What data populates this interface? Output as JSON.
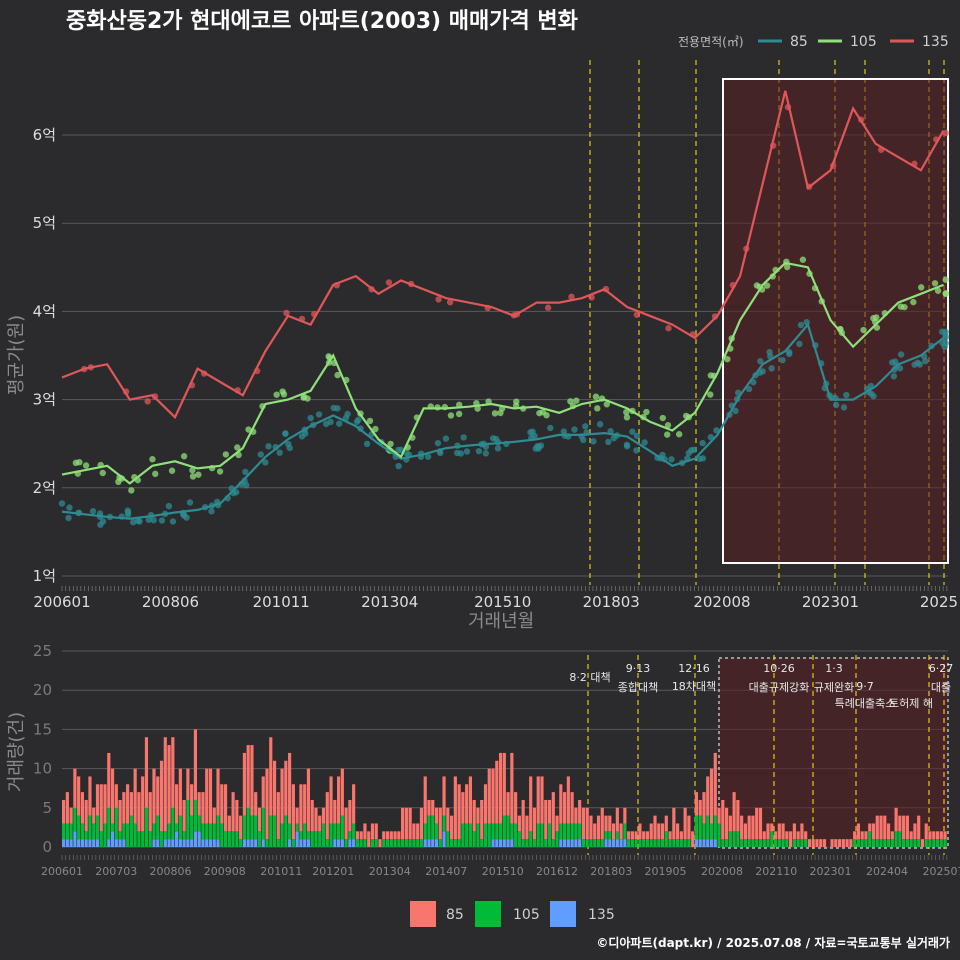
{
  "title": "중화산동2가 현대에코르 아파트(2003) 매매가격 변화",
  "footer": "©디아파트(dapt.kr) / 2025.07.08 / 자료=국토교통부 실거래가",
  "colors": {
    "s85": "#2e8b91",
    "s105": "#8fe07a",
    "s135": "#e0575a",
    "b85": "#f8766d",
    "b105": "#00ba38",
    "b135": "#619cff",
    "event": "#e6c619",
    "box": "#ffffff"
  },
  "chart_data": [
    {
      "type": "line",
      "title": "중화산동2가 현대에코르 아파트(2003) 매매가격 변화",
      "xlabel": "거래년월",
      "ylabel": "평균가(원)",
      "legend_title": "전용면적(㎡)",
      "legend_position": "top-right",
      "x_tick_labels": [
        "200601",
        "200806",
        "201011",
        "201304",
        "201510",
        "201803",
        "202008",
        "202301",
        "2025"
      ],
      "ytick_labels": [
        "1억",
        "2억",
        "3억",
        "4억",
        "5억",
        "6억"
      ],
      "ylim": [
        1,
        6.6
      ],
      "grid": true,
      "series": [
        {
          "name": "85",
          "x": [
            2006.0,
            2006.5,
            2007.0,
            2007.5,
            2008.0,
            2008.5,
            2009.0,
            2009.5,
            2010.0,
            2010.5,
            2011.0,
            2011.5,
            2012.0,
            2012.5,
            2013.0,
            2013.5,
            2014.0,
            2014.5,
            2015.0,
            2015.5,
            2016.0,
            2016.5,
            2017.0,
            2017.5,
            2018.0,
            2018.5,
            2019.0,
            2019.5,
            2020.0,
            2020.5,
            2021.0,
            2021.5,
            2022.0,
            2022.5,
            2023.0,
            2023.5,
            2024.0,
            2024.5,
            2025.0,
            2025.5
          ],
          "y": [
            1.73,
            1.7,
            1.67,
            1.65,
            1.68,
            1.72,
            1.75,
            1.82,
            2.08,
            2.35,
            2.55,
            2.7,
            2.82,
            2.7,
            2.5,
            2.33,
            2.38,
            2.45,
            2.48,
            2.5,
            2.52,
            2.55,
            2.6,
            2.6,
            2.62,
            2.58,
            2.42,
            2.25,
            2.33,
            2.6,
            3.05,
            3.4,
            3.55,
            3.85,
            3.0,
            3.0,
            3.15,
            3.4,
            3.5,
            3.7
          ]
        },
        {
          "name": "105",
          "x": [
            2006.0,
            2006.5,
            2007.0,
            2007.5,
            2008.0,
            2008.5,
            2009.0,
            2009.5,
            2010.0,
            2010.5,
            2011.0,
            2011.5,
            2012.0,
            2012.5,
            2013.0,
            2013.5,
            2014.0,
            2014.5,
            2015.0,
            2015.5,
            2016.0,
            2016.5,
            2017.0,
            2017.5,
            2018.0,
            2018.5,
            2019.0,
            2019.5,
            2020.0,
            2020.5,
            2021.0,
            2021.5,
            2022.0,
            2022.5,
            2023.0,
            2023.5,
            2024.0,
            2024.5,
            2025.0,
            2025.5
          ],
          "y": [
            2.15,
            2.2,
            2.25,
            2.05,
            2.25,
            2.3,
            2.22,
            2.25,
            2.45,
            2.95,
            3.0,
            3.1,
            3.5,
            2.9,
            2.55,
            2.35,
            2.9,
            2.9,
            2.92,
            2.95,
            2.9,
            2.92,
            2.85,
            2.95,
            3.0,
            2.9,
            2.75,
            2.65,
            2.85,
            3.3,
            3.9,
            4.3,
            4.55,
            4.5,
            3.9,
            3.6,
            3.85,
            4.1,
            4.2,
            4.3
          ]
        },
        {
          "name": "135",
          "x": [
            2006.0,
            2006.5,
            2007.0,
            2007.5,
            2008.0,
            2008.5,
            2009.0,
            2009.5,
            2010.0,
            2010.5,
            2011.0,
            2011.5,
            2012.0,
            2012.5,
            2013.0,
            2013.5,
            2014.0,
            2014.5,
            2015.0,
            2015.5,
            2016.0,
            2016.5,
            2017.0,
            2017.5,
            2018.0,
            2018.5,
            2019.0,
            2019.5,
            2020.0,
            2020.5,
            2021.0,
            2021.5,
            2022.0,
            2022.5,
            2023.0,
            2023.5,
            2024.0,
            2024.5,
            2025.0,
            2025.5
          ],
          "y": [
            3.25,
            3.35,
            3.4,
            3.0,
            3.05,
            2.8,
            3.35,
            3.2,
            3.05,
            3.55,
            3.95,
            3.85,
            4.3,
            4.4,
            4.2,
            4.35,
            4.25,
            4.15,
            4.1,
            4.05,
            3.95,
            4.1,
            4.1,
            4.15,
            4.25,
            4.05,
            3.95,
            3.85,
            3.7,
            3.95,
            4.4,
            5.45,
            6.5,
            5.4,
            5.6,
            6.3,
            5.9,
            5.75,
            5.6,
            6.05
          ]
        }
      ]
    },
    {
      "type": "bar",
      "ylabel": "거래량(건)",
      "x_tick_labels": [
        "200601",
        "200703",
        "200806",
        "200908",
        "201011",
        "201201",
        "201304",
        "201407",
        "201510",
        "201612",
        "201803",
        "201905",
        "202008",
        "202110",
        "202301",
        "202404",
        "202507"
      ],
      "ytick_labels": [
        "0",
        "5",
        "10",
        "15",
        "20",
        "25"
      ],
      "ylim": [
        0,
        25
      ],
      "stacked": true,
      "legend_position": "bottom",
      "series": [
        {
          "name": "85",
          "x": [
            2006.0,
            2006.5,
            2007.0,
            2007.5,
            2008.0,
            2008.5,
            2009.0,
            2009.5,
            2010.0,
            2010.5,
            2011.0,
            2011.5,
            2012.0,
            2012.5,
            2013.0,
            2013.5,
            2014.0,
            2014.5,
            2015.0,
            2015.5,
            2016.0,
            2016.5,
            2017.0,
            2017.5,
            2018.0,
            2018.5,
            2019.0,
            2019.5,
            2020.0,
            2020.5,
            2021.0,
            2021.5,
            2022.0,
            2022.5,
            2023.0,
            2023.5,
            2024.0,
            2024.5,
            2025.0,
            2025.5
          ],
          "y": [
            3,
            4,
            5,
            6,
            8,
            7,
            5,
            6,
            6,
            7,
            6,
            5,
            4,
            2,
            1,
            3,
            4,
            5,
            5,
            6,
            5,
            4,
            4,
            3,
            2,
            1,
            2,
            3,
            5,
            4,
            3,
            2,
            1,
            1,
            1,
            1,
            2,
            2,
            2,
            1
          ]
        },
        {
          "name": "105",
          "x": [
            2006.0,
            2006.5,
            2007.0,
            2007.5,
            2008.0,
            2008.5,
            2009.0,
            2009.5,
            2010.0,
            2010.5,
            2011.0,
            2011.5,
            2012.0,
            2012.5,
            2013.0,
            2013.5,
            2014.0,
            2014.5,
            2015.0,
            2015.5,
            2016.0,
            2016.5,
            2017.0,
            2017.5,
            2018.0,
            2018.5,
            2019.0,
            2019.5,
            2020.0,
            2020.5,
            2021.0,
            2021.5,
            2022.0,
            2022.5,
            2023.0,
            2023.5,
            2024.0,
            2024.5,
            2025.0,
            2025.5
          ],
          "y": [
            2,
            2,
            3,
            3,
            3,
            3,
            2,
            2,
            3,
            3,
            2,
            2,
            2,
            1,
            1,
            1,
            2,
            2,
            2,
            2,
            2,
            2,
            2,
            1,
            1,
            1,
            1,
            1,
            3,
            2,
            1,
            1,
            1,
            0,
            0,
            1,
            1,
            1,
            1,
            1
          ]
        },
        {
          "name": "135",
          "x": [
            2006.0,
            2006.5,
            2007.0,
            2007.5,
            2008.0,
            2008.5,
            2009.0,
            2009.5,
            2010.0,
            2010.5,
            2011.0,
            2011.5,
            2012.0,
            2012.5,
            2013.0,
            2013.5,
            2014.0,
            2014.5,
            2015.0,
            2015.5,
            2016.0,
            2016.5,
            2017.0,
            2017.5,
            2018.0,
            2018.5,
            2019.0,
            2019.5,
            2020.0,
            2020.5,
            2021.0,
            2021.5,
            2022.0,
            2022.5,
            2023.0,
            2023.5,
            2024.0,
            2024.5,
            2025.0,
            2025.5
          ],
          "y": [
            1,
            1,
            1,
            0,
            1,
            1,
            1,
            0,
            1,
            0,
            1,
            0,
            1,
            0,
            0,
            0,
            1,
            0,
            0,
            1,
            0,
            0,
            1,
            0,
            1,
            0,
            0,
            0,
            1,
            0,
            0,
            0,
            0,
            0,
            0,
            0,
            0,
            0,
            0,
            0
          ]
        }
      ],
      "events": [
        {
          "date": "8·2",
          "label": "대책"
        },
        {
          "date": "9·13",
          "label": "종합대책"
        },
        {
          "date": "12·16",
          "label": "18차대책"
        },
        {
          "date": "10·26",
          "label": "대출규제강화"
        },
        {
          "date": "1·3",
          "label": "규제완화"
        },
        {
          "date": "9·7",
          "label": "특례대출축소"
        },
        {
          "date": "",
          "label": "토허제 해"
        },
        {
          "date": "6·27",
          "label": "대출"
        }
      ]
    }
  ]
}
